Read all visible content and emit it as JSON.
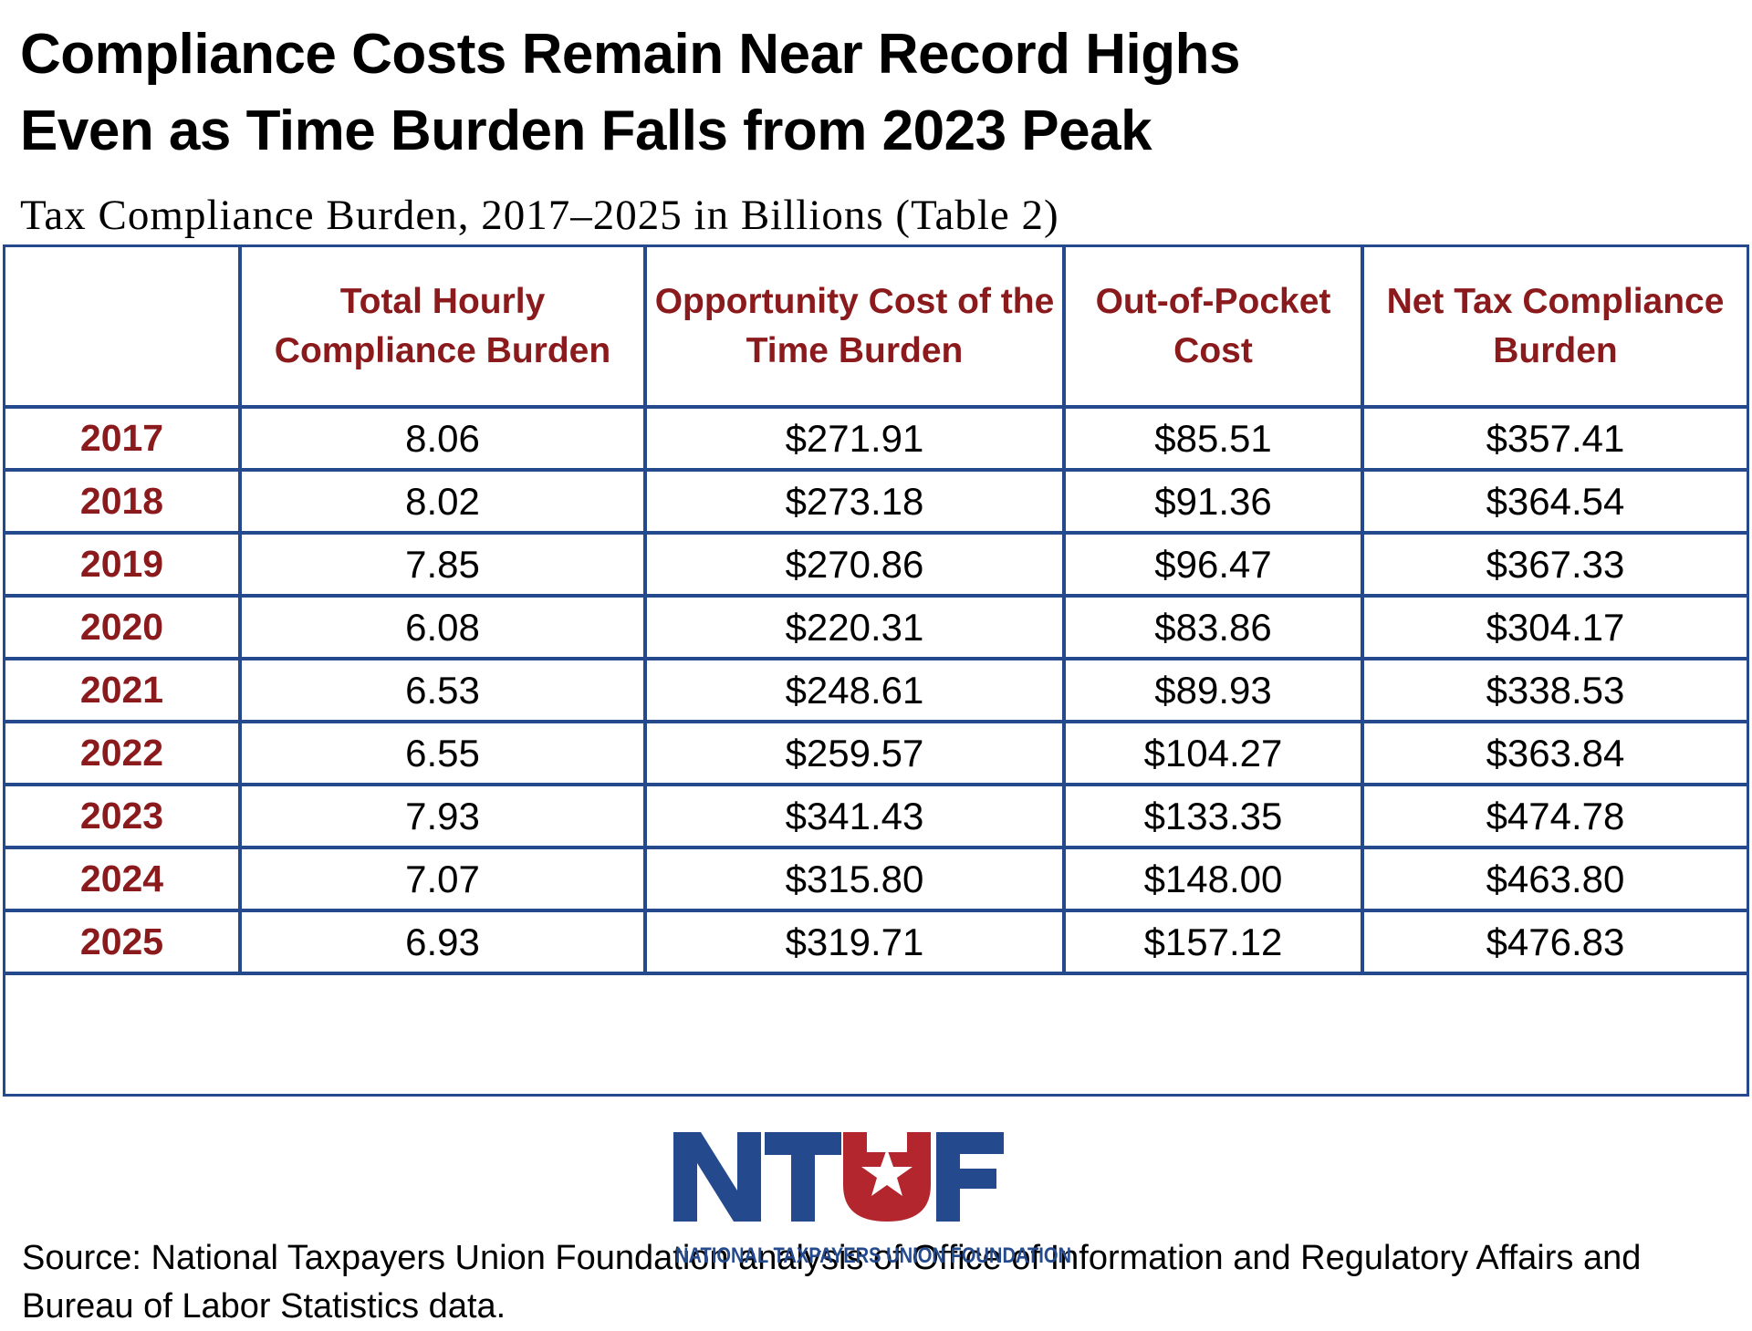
{
  "title_line1": "Compliance Costs Remain Near Record Highs",
  "title_line2": "Even as Time Burden Falls from 2023 Peak",
  "subtitle": "Tax Compliance Burden, 2017–2025 in Billions  (Table 2)",
  "colors": {
    "border": "#24498c",
    "header_text": "#8b1a1d",
    "year_text": "#8b1a1d",
    "logo_blue": "#24498c",
    "logo_red": "#b3262d"
  },
  "chart_data": {
    "type": "table",
    "columns": [
      "",
      "Total Hourly Compliance Burden",
      "Opportunity Cost of the Time Burden",
      "Out-of-Pocket Cost",
      "Net Tax Compliance Burden"
    ],
    "rows": [
      [
        "2017",
        "8.06",
        "$271.91",
        "$85.51",
        "$357.41"
      ],
      [
        "2018",
        "8.02",
        "$273.18",
        "$91.36",
        "$364.54"
      ],
      [
        "2019",
        "7.85",
        "$270.86",
        "$96.47",
        "$367.33"
      ],
      [
        "2020",
        "6.08",
        "$220.31",
        "$83.86",
        "$304.17"
      ],
      [
        "2021",
        "6.53",
        "$248.61",
        "$89.93",
        "$338.53"
      ],
      [
        "2022",
        "6.55",
        "$259.57",
        "$104.27",
        "$363.84"
      ],
      [
        "2023",
        "7.93",
        "$341.43",
        "$133.35",
        "$474.78"
      ],
      [
        "2024",
        "7.07",
        "$315.80",
        "$148.00",
        "$463.80"
      ],
      [
        "2025",
        "6.93",
        "$319.71",
        "$157.12",
        "$476.83"
      ]
    ]
  },
  "source_note": "Source: National Taxpayers Union Foundation analysis of Office of Information and Regulatory Affairs and Bureau of Labor Statistics data.",
  "logo": {
    "mark": "NTUF",
    "icon": "star-icon",
    "name": "NATIONAL TAXPAYERS UNION FOUNDATION"
  }
}
